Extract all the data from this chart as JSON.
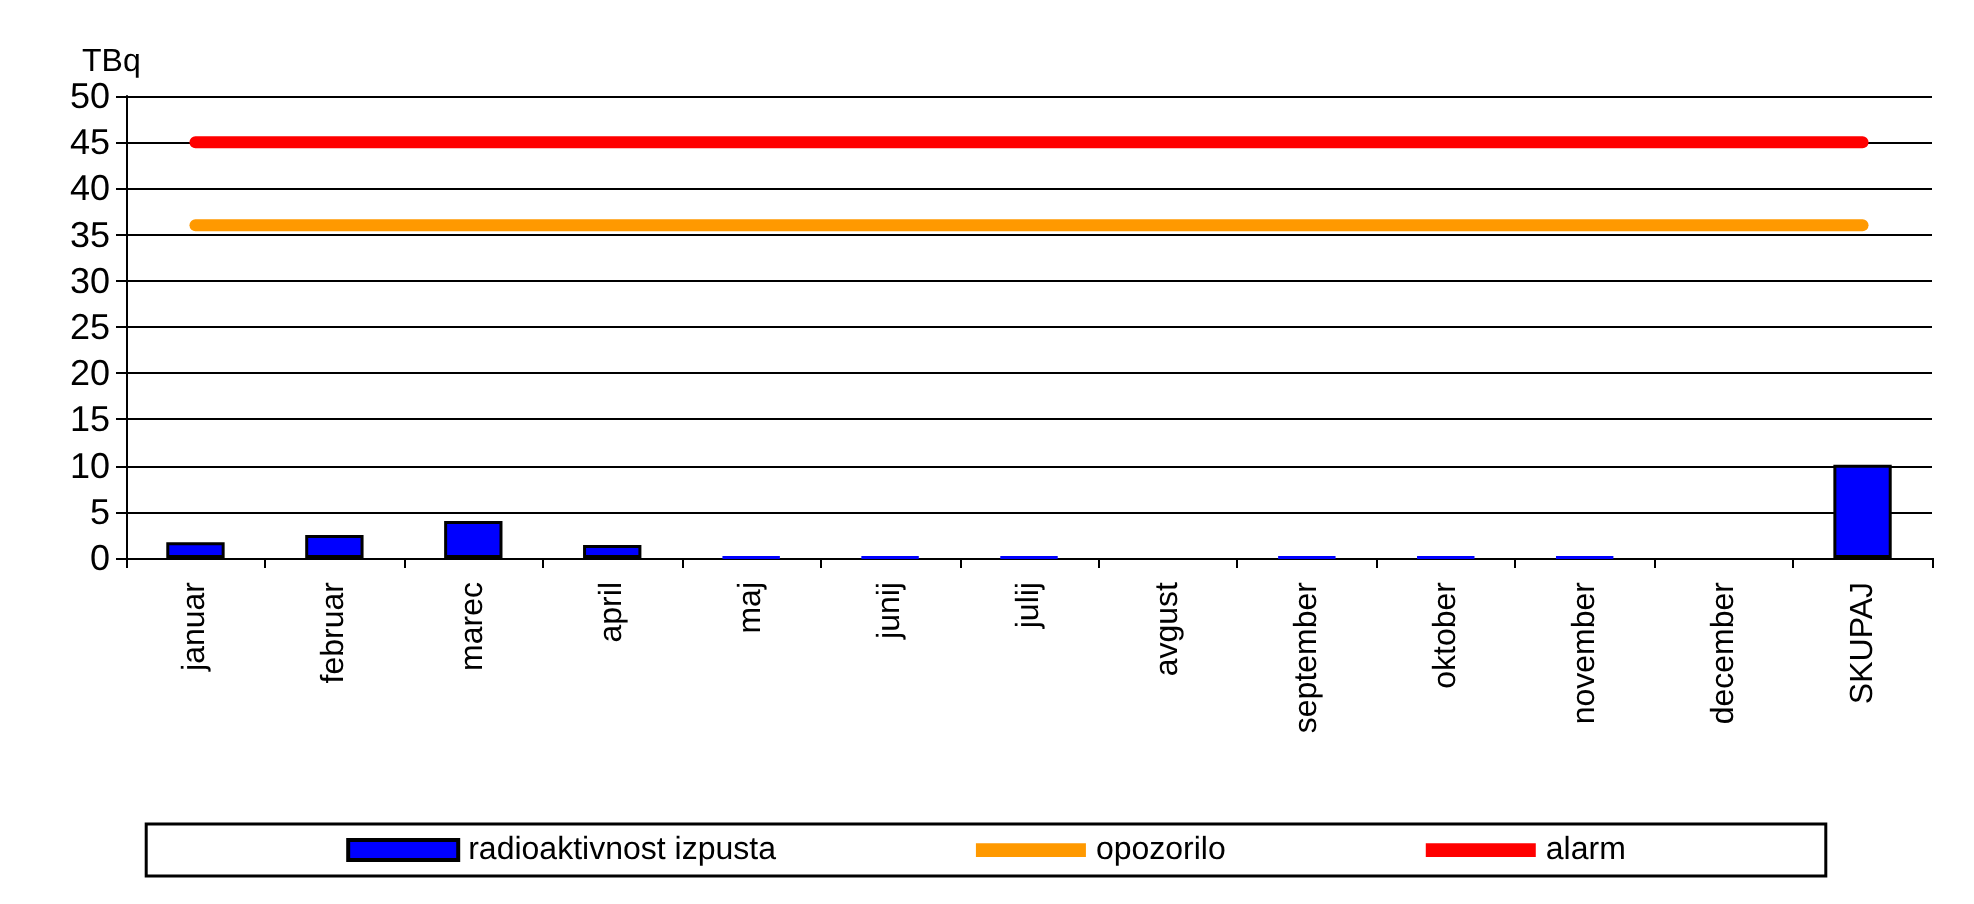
{
  "chart_data": {
    "type": "bar",
    "ylabel": "TBq",
    "categories": [
      "januar",
      "februar",
      "marec",
      "april",
      "maj",
      "junij",
      "julij",
      "avgust",
      "september",
      "oktober",
      "november",
      "december",
      "SKUPAJ"
    ],
    "series": [
      {
        "name": "radioaktivnost izpusta",
        "color": "#0000ff",
        "values": [
          1.7,
          2.5,
          4.0,
          1.4,
          0.1,
          0.1,
          0.1,
          0,
          0.1,
          0.1,
          0.1,
          0,
          10.1
        ]
      },
      {
        "name": "opozorilo",
        "type": "line",
        "color": "#ff9900",
        "values": [
          36,
          36,
          36,
          36,
          36,
          36,
          36,
          36,
          36,
          36,
          36,
          36,
          36
        ]
      },
      {
        "name": "alarm",
        "type": "line",
        "color": "#ff0000",
        "values": [
          45,
          45,
          45,
          45,
          45,
          45,
          45,
          45,
          45,
          45,
          45,
          45,
          45
        ]
      }
    ],
    "ylim": [
      0,
      50
    ],
    "yticks": [
      0,
      5,
      10,
      15,
      20,
      25,
      30,
      35,
      40,
      45,
      50
    ],
    "grid": "y",
    "legend": "bottom",
    "marker": "none"
  }
}
